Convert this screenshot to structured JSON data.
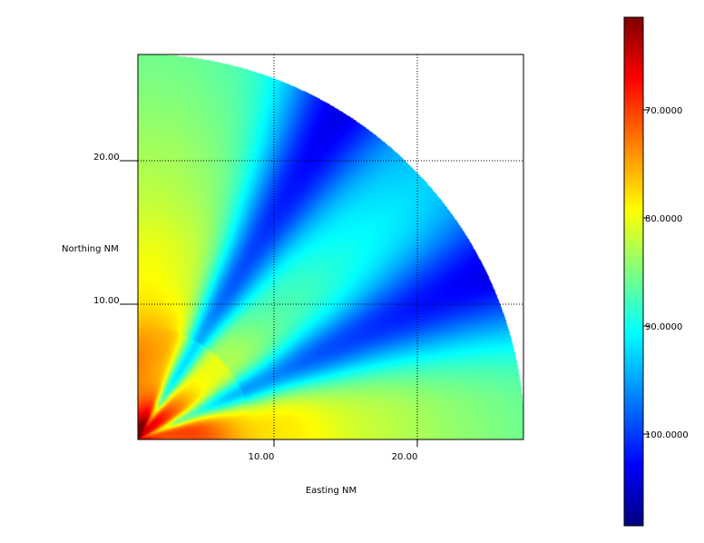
{
  "chart_data": {
    "type": "heatmap",
    "title": "",
    "xlabel": "Easting NM",
    "ylabel": "Northing NM",
    "xlim": [
      -9,
      27
    ],
    "ylim": [
      0,
      27
    ],
    "x_ticks": [
      "10.00",
      "20.00"
    ],
    "y_ticks": [
      "10.00",
      "20.00"
    ],
    "grid": true,
    "radius_nm": 27,
    "colorbar": {
      "range": [
        62,
        112
      ],
      "reversed": true,
      "ticks": [
        "70.0000",
        "80.0000",
        "90.0000",
        "100.0000"
      ],
      "colormap": [
        "#00007f",
        "#0000ff",
        "#00ffff",
        "#ffff00",
        "#ff0000",
        "#7f0000"
      ]
    }
  }
}
